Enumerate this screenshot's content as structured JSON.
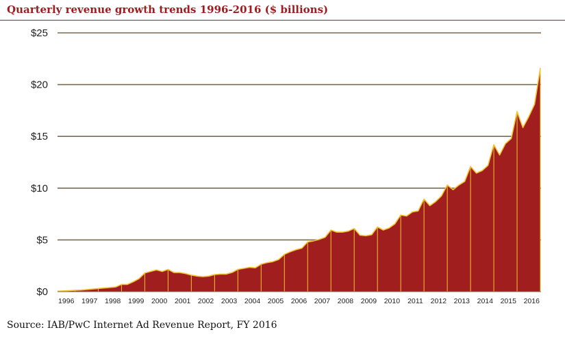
{
  "title": "Quarterly revenue growth trends 1996-2016 ($ billions)",
  "source": "Source: IAB/PwC Internet Ad Revenue Report, FY 2016",
  "colors": {
    "fill": "#a11e1f",
    "line": "#f2c531",
    "title": "#9e1b1e",
    "grid": "#7a6a4f"
  },
  "chart_data": {
    "type": "area",
    "title": "Quarterly revenue growth trends 1996-2016 ($ billions)",
    "xlabel": "",
    "ylabel": "",
    "ylim": [
      0,
      25
    ],
    "yticks": [
      0,
      5,
      10,
      15,
      20,
      25
    ],
    "ytick_labels": [
      "$0",
      "$5",
      "$10",
      "$15",
      "$20",
      "$25"
    ],
    "grid": "horizontal",
    "legend": "none",
    "years": [
      "1996",
      "1997",
      "1998",
      "1999",
      "2000",
      "2001",
      "2002",
      "2003",
      "2004",
      "2005",
      "2006",
      "2007",
      "2008",
      "2009",
      "2010",
      "2011",
      "2012",
      "2013",
      "2014",
      "2015",
      "2016"
    ],
    "series": [
      {
        "values": [
          0.05,
          0.07,
          0.1,
          0.13,
          0.15,
          0.2,
          0.25,
          0.3,
          0.35,
          0.4,
          0.45,
          0.7,
          0.7,
          0.95,
          1.25,
          1.8,
          1.95,
          2.1,
          1.95,
          2.15,
          1.85,
          1.85,
          1.75,
          1.6,
          1.5,
          1.45,
          1.5,
          1.65,
          1.7,
          1.7,
          1.85,
          2.15,
          2.25,
          2.35,
          2.3,
          2.65,
          2.8,
          2.9,
          3.1,
          3.6,
          3.85,
          4.05,
          4.2,
          4.8,
          4.9,
          5.05,
          5.25,
          5.95,
          5.75,
          5.75,
          5.85,
          6.1,
          5.45,
          5.4,
          5.5,
          6.25,
          5.95,
          6.15,
          6.55,
          7.4,
          7.3,
          7.7,
          7.8,
          8.95,
          8.3,
          8.7,
          9.25,
          10.3,
          9.85,
          10.3,
          10.65,
          12.1,
          11.45,
          11.7,
          12.2,
          14.2,
          13.2,
          14.3,
          14.8,
          17.4,
          15.85,
          16.9,
          18.1,
          21.6
        ]
      }
    ]
  }
}
